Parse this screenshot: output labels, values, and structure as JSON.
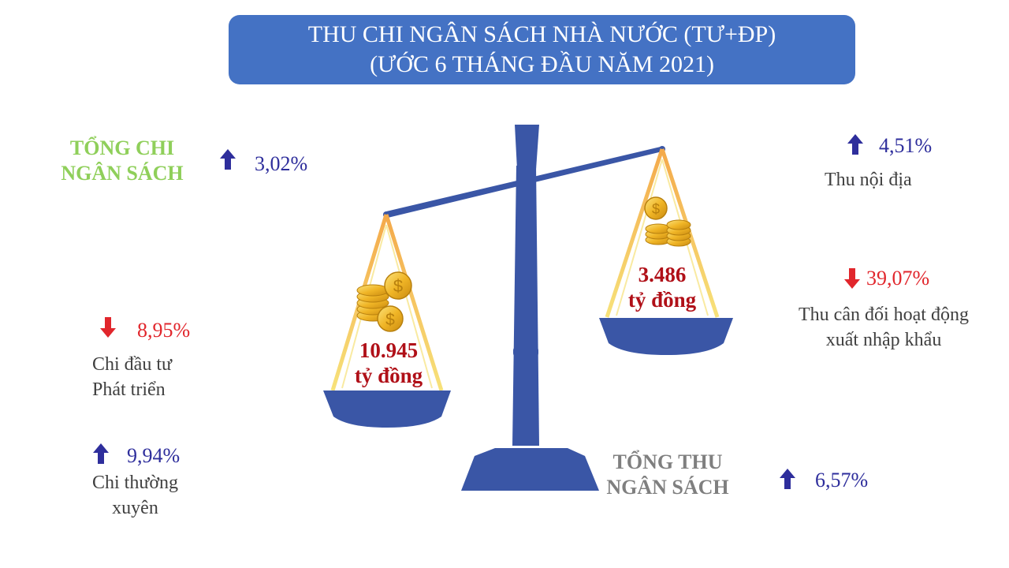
{
  "title": {
    "line1": "THU CHI NGÂN SÁCH NHÀ NƯỚC (TƯ+ĐP)",
    "line2": "(ƯỚC 6 THÁNG ĐẦU NĂM 2021)"
  },
  "spending": {
    "heading_line1": "TỔNG CHI",
    "heading_line2": "NGÂN SÁCH",
    "total_change": "3,02%",
    "total_direction": "up",
    "amount_line1": "10.945",
    "amount_line2": "tỷ đồng",
    "items": [
      {
        "change": "8,95%",
        "direction": "down",
        "label_line1": "Chi đầu tư",
        "label_line2": "Phát triển"
      },
      {
        "change": "9,94%",
        "direction": "up",
        "label_line1": "Chi thường",
        "label_line2": "xuyên"
      }
    ]
  },
  "revenue": {
    "heading_line1": "TỔNG THU",
    "heading_line2": "NGÂN SÁCH",
    "total_change": "6,57%",
    "total_direction": "up",
    "amount_line1": "3.486",
    "amount_line2": "tỷ đồng",
    "items": [
      {
        "change": "4,51%",
        "direction": "up",
        "label_line1": "Thu nội địa",
        "label_line2": ""
      },
      {
        "change": "39,07%",
        "direction": "down",
        "label_line1": "Thu cân đối hoạt động",
        "label_line2": "xuất nhập khẩu"
      }
    ]
  },
  "colors": {
    "title_bg": "#4472c4",
    "scale_blue": "#3a56a6",
    "up_arrow": "#2e2e9c",
    "down_arrow": "#e1262c",
    "spending_heading": "#8fcf5a",
    "revenue_heading": "#7f7f7f",
    "amount_text": "#b01018"
  },
  "icons": {
    "up": "arrow-up-icon",
    "down": "arrow-down-icon",
    "scale": "balance-scale-icon",
    "coins": "coin-stack-icon"
  }
}
